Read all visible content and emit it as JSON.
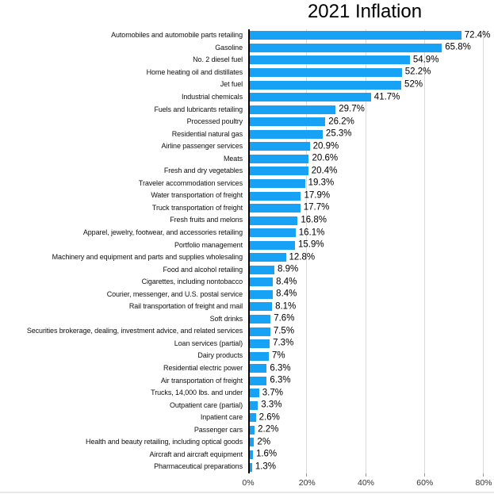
{
  "page": {
    "title": "2021 Inflation"
  },
  "chart_data": {
    "type": "bar",
    "orientation": "horizontal",
    "title": "2021 Inflation",
    "xlabel": "",
    "ylabel": "",
    "xlim": [
      0,
      80
    ],
    "grid": "vertical",
    "legend": "none",
    "bar_color": "#18a2f5",
    "gridline_color": "#d9d9d9",
    "axis_line_color": "#000000",
    "x_ticks": [
      {
        "value": 0,
        "label": "0%"
      },
      {
        "value": 20,
        "label": "20%"
      },
      {
        "value": 40,
        "label": "40%"
      },
      {
        "value": 60,
        "label": "60%"
      },
      {
        "value": 80,
        "label": "80%"
      }
    ],
    "categories": [
      "Automobiles and automobile parts retailing",
      "Gasoline",
      "No. 2 diesel fuel",
      "Home heating oil and distillates",
      "Jet fuel",
      "Industrial chemicals",
      "Fuels and lubricants retailing",
      "Processed poultry",
      "Residential natural gas",
      "Airline passenger services",
      "Meats",
      "Fresh and dry vegetables",
      "Traveler accommodation services",
      "Water transportation of freight",
      "Truck transportation of freight",
      "Fresh fruits and melons",
      "Apparel, jewelry, footwear, and accessories retailing",
      "Portfolio management",
      "Machinery and equipment and parts and supplies wholesaling",
      "Food and alcohol retailing",
      "Cigarettes, including nontobacco",
      "Courier, messenger, and U.S. postal service",
      "Rail transportation of freight and mail",
      "Soft drinks",
      "Securities brokerage, dealing, investment advice, and related services",
      "Loan services (partial)",
      "Dairy products",
      "Residential electric power",
      "Air transportation of freight",
      "Trucks, 14,000 lbs. and under",
      "Outpatient care (partial)",
      "Inpatient care",
      "Passenger cars",
      "Health and beauty retailing, including optical goods",
      "Aircraft and aircraft equipment",
      "Pharmaceutical preparations"
    ],
    "values": [
      72.4,
      65.8,
      54.9,
      52.2,
      52,
      41.7,
      29.7,
      26.2,
      25.3,
      20.9,
      20.6,
      20.4,
      19.3,
      17.9,
      17.7,
      16.8,
      16.1,
      15.9,
      12.8,
      8.9,
      8.4,
      8.4,
      8.1,
      7.6,
      7.5,
      7.3,
      7,
      6.3,
      6.3,
      3.7,
      3.3,
      2.6,
      2.2,
      2,
      1.6,
      1.3
    ],
    "value_labels": [
      "72.4%",
      "65.8%",
      "54.9%",
      "52.2%",
      "52%",
      "41.7%",
      "29.7%",
      "26.2%",
      "25.3%",
      "20.9%",
      "20.6%",
      "20.4%",
      "19.3%",
      "17.9%",
      "17.7%",
      "16.8%",
      "16.1%",
      "15.9%",
      "12.8%",
      "8.9%",
      "8.4%",
      "8.4%",
      "8.1%",
      "7.6%",
      "7.5%",
      "7.3%",
      "7%",
      "6.3%",
      "6.3%",
      "3.7%",
      "3.3%",
      "2.6%",
      "2.2%",
      "2%",
      "1.6%",
      "1.3%"
    ]
  }
}
